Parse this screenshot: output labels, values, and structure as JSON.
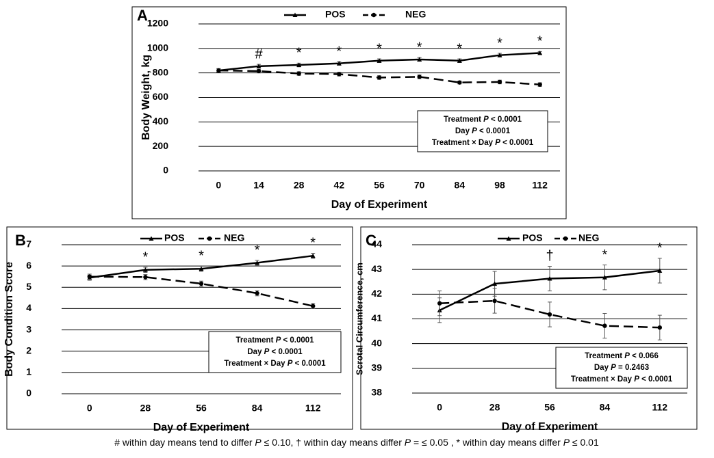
{
  "chart_data": [
    {
      "type": "line",
      "panel_label": "A",
      "x_label": "Day of Experiment",
      "y_label": "Body Weight, kg",
      "categories": [
        "0",
        "14",
        "28",
        "42",
        "56",
        "70",
        "84",
        "98",
        "112"
      ],
      "ylim": [
        0,
        1200
      ],
      "yticks": [
        0,
        200,
        400,
        600,
        800,
        1000,
        1200
      ],
      "grid": true,
      "series": [
        {
          "name": "POS",
          "color": "#000000",
          "line_style": "solid",
          "marker": "triangle",
          "values": [
            820,
            855,
            865,
            878,
            900,
            910,
            900,
            945,
            963
          ],
          "errors": [
            15,
            15,
            15,
            15,
            15,
            15,
            15,
            15,
            12
          ]
        },
        {
          "name": "NEG",
          "color": "#000000",
          "line_style": "dashed",
          "marker": "circle",
          "values": [
            820,
            815,
            795,
            790,
            762,
            768,
            722,
            726,
            705
          ],
          "errors": [
            15,
            15,
            15,
            15,
            15,
            15,
            12,
            15,
            15
          ]
        }
      ],
      "significance": [
        null,
        "#",
        "*",
        "*",
        "*",
        "*",
        "*",
        "*",
        "*"
      ],
      "stats": [
        [
          "Treatment ",
          "P",
          " < 0.0001"
        ],
        [
          "Day ",
          "P",
          " < 0.0001"
        ],
        [
          "Treatment × Day  ",
          "P",
          " < 0.0001"
        ]
      ]
    },
    {
      "type": "line",
      "panel_label": "B",
      "x_label": "Day of Experiment",
      "y_label": "Body Condition Score",
      "categories": [
        "0",
        "28",
        "56",
        "84",
        "112"
      ],
      "ylim": [
        0,
        7
      ],
      "yticks": [
        0,
        1,
        2,
        3,
        4,
        5,
        6,
        7
      ],
      "grid": true,
      "series": [
        {
          "name": "POS",
          "color": "#000000",
          "line_style": "solid",
          "marker": "triangle",
          "values": [
            5.45,
            5.82,
            5.87,
            6.15,
            6.48
          ],
          "errors": [
            0.12,
            0.12,
            0.12,
            0.12,
            0.12
          ]
        },
        {
          "name": "NEG",
          "color": "#000000",
          "line_style": "dashed",
          "marker": "circle",
          "values": [
            5.5,
            5.48,
            5.17,
            4.72,
            4.12
          ],
          "errors": [
            0.12,
            0.12,
            0.12,
            0.12,
            0.12
          ]
        }
      ],
      "significance": [
        null,
        "*",
        "*",
        "*",
        "*"
      ],
      "stats": [
        [
          "Treatment ",
          "P",
          " < 0.0001"
        ],
        [
          "Day ",
          "P",
          " < 0.0001"
        ],
        [
          "Treatment × Day  ",
          "P",
          " < 0.0001"
        ]
      ]
    },
    {
      "type": "line",
      "panel_label": "C",
      "x_label": "Day of Experiment",
      "y_label": "Scrotal Circumference, cm",
      "categories": [
        "0",
        "28",
        "56",
        "84",
        "112"
      ],
      "ylim": [
        38,
        44
      ],
      "yticks": [
        38,
        39,
        40,
        41,
        42,
        43,
        44
      ],
      "grid": true,
      "series": [
        {
          "name": "POS",
          "color": "#000000",
          "line_style": "solid",
          "marker": "triangle",
          "values": [
            41.35,
            42.42,
            42.63,
            42.68,
            42.95
          ],
          "errors": [
            0.5,
            0.5,
            0.5,
            0.5,
            0.5
          ]
        },
        {
          "name": "NEG",
          "color": "#000000",
          "line_style": "dashed",
          "marker": "circle",
          "values": [
            41.63,
            41.73,
            41.18,
            40.72,
            40.65
          ],
          "errors": [
            0.5,
            0.5,
            0.5,
            0.5,
            0.5
          ]
        }
      ],
      "significance": [
        null,
        null,
        "†",
        "*",
        "*"
      ],
      "stats": [
        [
          "Treatment ",
          "P",
          " < 0.066"
        ],
        [
          "Day ",
          "P",
          " = 0.2463"
        ],
        [
          "Treatment × Day  ",
          "P",
          " < 0.0001"
        ]
      ]
    }
  ],
  "footnote": [
    [
      "#  within day means tend to differ ",
      "P",
      " ≤ 0.10, † within day means differ ",
      "P",
      " = ≤ 0.05 , * within day means differ ",
      "P",
      " ≤ 0.01"
    ]
  ]
}
